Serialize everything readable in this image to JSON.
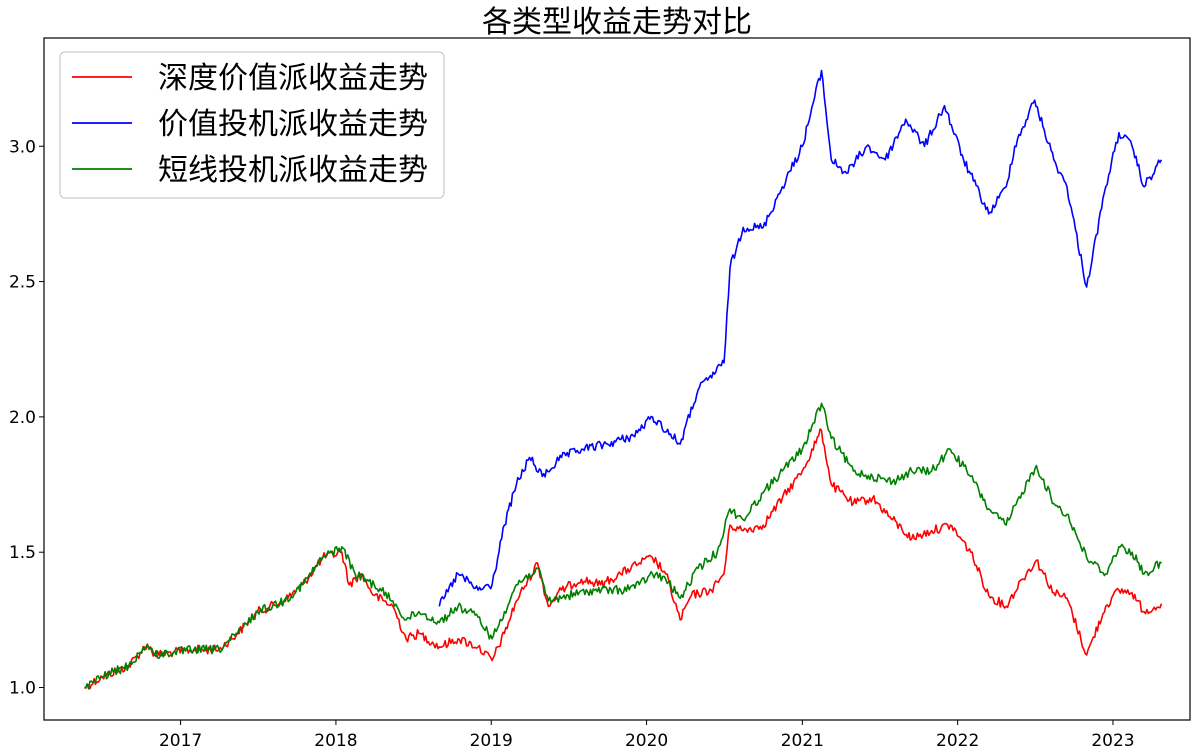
{
  "chart_data": {
    "type": "line",
    "title": "各类型收益走势对比",
    "xlabel": "",
    "ylabel": "",
    "x_ticks": [
      "2017",
      "2018",
      "2019",
      "2020",
      "2021",
      "2022",
      "2023"
    ],
    "y_ticks": [
      "1.0",
      "1.5",
      "2.0",
      "2.5",
      "3.0"
    ],
    "xlim": [
      "2016-02-15",
      "2023-07-01"
    ],
    "ylim": [
      0.88,
      3.4
    ],
    "grid": false,
    "legend_position": "upper-left",
    "series": [
      {
        "name": "深度价值派收益走势",
        "color": "#ff0000",
        "points": [
          [
            "2016-05-20",
            1.0
          ],
          [
            "2016-07-01",
            1.04
          ],
          [
            "2016-09-01",
            1.08
          ],
          [
            "2016-10-15",
            1.16
          ],
          [
            "2016-11-01",
            1.12
          ],
          [
            "2016-12-15",
            1.13
          ],
          [
            "2017-02-01",
            1.14
          ],
          [
            "2017-04-01",
            1.14
          ],
          [
            "2017-05-15",
            1.2
          ],
          [
            "2017-07-01",
            1.28
          ],
          [
            "2017-09-01",
            1.32
          ],
          [
            "2017-10-15",
            1.38
          ],
          [
            "2017-12-01",
            1.48
          ],
          [
            "2018-01-15",
            1.5
          ],
          [
            "2018-02-01",
            1.38
          ],
          [
            "2018-03-01",
            1.42
          ],
          [
            "2018-04-01",
            1.34
          ],
          [
            "2018-05-15",
            1.3
          ],
          [
            "2018-06-15",
            1.18
          ],
          [
            "2018-07-15",
            1.2
          ],
          [
            "2018-09-01",
            1.15
          ],
          [
            "2018-10-15",
            1.18
          ],
          [
            "2018-12-01",
            1.15
          ],
          [
            "2019-01-03",
            1.1
          ],
          [
            "2019-02-01",
            1.2
          ],
          [
            "2019-03-01",
            1.32
          ],
          [
            "2019-04-20",
            1.46
          ],
          [
            "2019-05-15",
            1.3
          ],
          [
            "2019-06-15",
            1.36
          ],
          [
            "2019-08-01",
            1.4
          ],
          [
            "2019-09-15",
            1.38
          ],
          [
            "2019-11-01",
            1.42
          ],
          [
            "2019-12-15",
            1.46
          ],
          [
            "2020-01-15",
            1.48
          ],
          [
            "2020-02-15",
            1.42
          ],
          [
            "2020-03-20",
            1.25
          ],
          [
            "2020-04-15",
            1.34
          ],
          [
            "2020-06-01",
            1.36
          ],
          [
            "2020-07-01",
            1.42
          ],
          [
            "2020-07-15",
            1.6
          ],
          [
            "2020-08-15",
            1.58
          ],
          [
            "2020-10-01",
            1.6
          ],
          [
            "2020-11-15",
            1.7
          ],
          [
            "2021-01-01",
            1.8
          ],
          [
            "2021-02-15",
            1.95
          ],
          [
            "2021-03-10",
            1.75
          ],
          [
            "2021-05-01",
            1.68
          ],
          [
            "2021-06-15",
            1.7
          ],
          [
            "2021-08-01",
            1.62
          ],
          [
            "2021-09-15",
            1.55
          ],
          [
            "2021-11-01",
            1.58
          ],
          [
            "2021-12-15",
            1.6
          ],
          [
            "2022-02-01",
            1.5
          ],
          [
            "2022-03-15",
            1.34
          ],
          [
            "2022-04-25",
            1.3
          ],
          [
            "2022-06-01",
            1.4
          ],
          [
            "2022-07-05",
            1.47
          ],
          [
            "2022-08-15",
            1.35
          ],
          [
            "2022-09-15",
            1.33
          ],
          [
            "2022-10-31",
            1.12
          ],
          [
            "2022-12-15",
            1.3
          ],
          [
            "2023-01-15",
            1.36
          ],
          [
            "2023-02-15",
            1.35
          ],
          [
            "2023-03-15",
            1.28
          ],
          [
            "2023-04-25",
            1.31
          ]
        ]
      },
      {
        "name": "价值投机派收益走势",
        "color": "#0000ff",
        "points": [
          [
            "2018-09-01",
            1.3
          ],
          [
            "2018-10-15",
            1.42
          ],
          [
            "2018-12-01",
            1.36
          ],
          [
            "2019-01-03",
            1.38
          ],
          [
            "2019-02-01",
            1.6
          ],
          [
            "2019-03-01",
            1.75
          ],
          [
            "2019-04-01",
            1.85
          ],
          [
            "2019-05-01",
            1.78
          ],
          [
            "2019-06-15",
            1.85
          ],
          [
            "2019-08-01",
            1.88
          ],
          [
            "2019-10-01",
            1.9
          ],
          [
            "2019-12-01",
            1.93
          ],
          [
            "2020-01-15",
            2.0
          ],
          [
            "2020-03-20",
            1.9
          ],
          [
            "2020-05-01",
            2.1
          ],
          [
            "2020-07-01",
            2.2
          ],
          [
            "2020-07-15",
            2.55
          ],
          [
            "2020-08-15",
            2.7
          ],
          [
            "2020-10-01",
            2.7
          ],
          [
            "2020-11-15",
            2.85
          ],
          [
            "2021-01-01",
            3.0
          ],
          [
            "2021-02-15",
            3.28
          ],
          [
            "2021-03-10",
            2.95
          ],
          [
            "2021-04-15",
            2.9
          ],
          [
            "2021-06-01",
            3.0
          ],
          [
            "2021-07-15",
            2.95
          ],
          [
            "2021-09-01",
            3.1
          ],
          [
            "2021-10-15",
            3.0
          ],
          [
            "2021-12-01",
            3.15
          ],
          [
            "2022-01-15",
            2.95
          ],
          [
            "2022-03-15",
            2.75
          ],
          [
            "2022-04-25",
            2.85
          ],
          [
            "2022-05-15",
            3.0
          ],
          [
            "2022-07-01",
            3.17
          ],
          [
            "2022-08-15",
            2.95
          ],
          [
            "2022-09-15",
            2.85
          ],
          [
            "2022-10-31",
            2.48
          ],
          [
            "2022-12-15",
            2.85
          ],
          [
            "2023-01-15",
            3.05
          ],
          [
            "2023-02-15",
            3.0
          ],
          [
            "2023-03-15",
            2.85
          ],
          [
            "2023-04-25",
            2.95
          ]
        ]
      },
      {
        "name": "短线投机派收益走势",
        "color": "#007f00",
        "points": [
          [
            "2016-05-20",
            1.0
          ],
          [
            "2016-07-01",
            1.04
          ],
          [
            "2016-09-01",
            1.08
          ],
          [
            "2016-10-15",
            1.16
          ],
          [
            "2016-11-01",
            1.12
          ],
          [
            "2016-12-15",
            1.13
          ],
          [
            "2017-02-01",
            1.14
          ],
          [
            "2017-04-01",
            1.14
          ],
          [
            "2017-05-15",
            1.2
          ],
          [
            "2017-07-01",
            1.28
          ],
          [
            "2017-09-01",
            1.32
          ],
          [
            "2017-10-15",
            1.38
          ],
          [
            "2017-12-01",
            1.48
          ],
          [
            "2018-01-15",
            1.52
          ],
          [
            "2018-02-15",
            1.42
          ],
          [
            "2018-04-01",
            1.38
          ],
          [
            "2018-05-15",
            1.32
          ],
          [
            "2018-06-15",
            1.25
          ],
          [
            "2018-07-15",
            1.28
          ],
          [
            "2018-09-01",
            1.24
          ],
          [
            "2018-10-15",
            1.3
          ],
          [
            "2018-12-01",
            1.26
          ],
          [
            "2019-01-03",
            1.18
          ],
          [
            "2019-02-01",
            1.28
          ],
          [
            "2019-03-01",
            1.38
          ],
          [
            "2019-04-20",
            1.44
          ],
          [
            "2019-05-15",
            1.32
          ],
          [
            "2019-07-01",
            1.34
          ],
          [
            "2019-09-01",
            1.36
          ],
          [
            "2019-11-01",
            1.36
          ],
          [
            "2019-12-15",
            1.38
          ],
          [
            "2020-01-15",
            1.42
          ],
          [
            "2020-02-15",
            1.4
          ],
          [
            "2020-03-20",
            1.33
          ],
          [
            "2020-05-01",
            1.44
          ],
          [
            "2020-06-15",
            1.5
          ],
          [
            "2020-07-15",
            1.66
          ],
          [
            "2020-08-15",
            1.62
          ],
          [
            "2020-10-01",
            1.72
          ],
          [
            "2020-11-15",
            1.8
          ],
          [
            "2021-01-01",
            1.88
          ],
          [
            "2021-02-15",
            2.05
          ],
          [
            "2021-03-10",
            1.92
          ],
          [
            "2021-05-01",
            1.8
          ],
          [
            "2021-06-15",
            1.78
          ],
          [
            "2021-08-01",
            1.76
          ],
          [
            "2021-09-15",
            1.8
          ],
          [
            "2021-11-01",
            1.8
          ],
          [
            "2021-12-15",
            1.88
          ],
          [
            "2022-02-01",
            1.78
          ],
          [
            "2022-03-15",
            1.66
          ],
          [
            "2022-04-25",
            1.6
          ],
          [
            "2022-06-01",
            1.72
          ],
          [
            "2022-07-05",
            1.82
          ],
          [
            "2022-08-15",
            1.68
          ],
          [
            "2022-09-15",
            1.64
          ],
          [
            "2022-10-31",
            1.48
          ],
          [
            "2022-12-15",
            1.42
          ],
          [
            "2023-01-15",
            1.52
          ],
          [
            "2023-02-15",
            1.5
          ],
          [
            "2023-03-15",
            1.42
          ],
          [
            "2023-04-25",
            1.46
          ]
        ]
      }
    ]
  }
}
